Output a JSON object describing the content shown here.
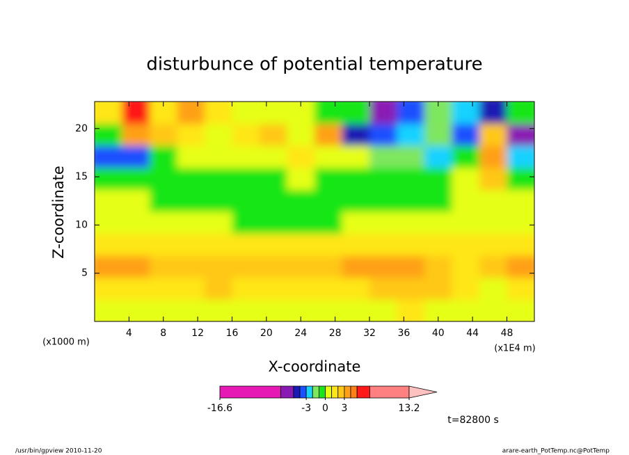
{
  "chart_data": {
    "type": "contour",
    "title": "disturbunce of potential temperature",
    "xlabel": "X-coordinate",
    "ylabel": "Z-coordinate",
    "y_unit": "(x1000 m)",
    "x_unit": "(x1E4 m)",
    "time_label": "t=82800 s",
    "footer_left": "/usr/bin/gpview  2010-11-20",
    "footer_right": "arare-earth_PotTemp.nc@PotTemp",
    "xlim": [
      0,
      51.2
    ],
    "ylim": [
      0,
      22.8
    ],
    "xticks": [
      4,
      8,
      12,
      16,
      20,
      24,
      28,
      32,
      36,
      40,
      44,
      48
    ],
    "yticks": [
      5,
      10,
      15,
      20
    ],
    "z": [
      [
        0.5,
        0.5,
        0.5,
        0.5,
        0.5,
        0.5,
        0.5,
        0.5,
        0.5,
        0.5,
        0.5,
        1.5,
        0.5,
        0.5,
        0.5,
        0.5
      ],
      [
        1.5,
        1.5,
        1.5,
        1.5,
        2,
        1.5,
        1.5,
        1.5,
        1.5,
        1.5,
        2,
        2.5,
        2,
        1.5,
        0.5,
        1.5
      ],
      [
        3.5,
        3.5,
        2.5,
        2.5,
        2.5,
        2.5,
        2.5,
        2.5,
        2.5,
        3.5,
        3.5,
        3.5,
        2.5,
        1.5,
        2.5,
        3.5
      ],
      [
        1.5,
        1.5,
        1.5,
        1.5,
        1.5,
        1.5,
        1.5,
        1.5,
        1.5,
        1.5,
        1.5,
        1.5,
        1.5,
        1.5,
        1.5,
        1.5
      ],
      [
        0.5,
        0.5,
        0.5,
        0.5,
        0.5,
        -0.5,
        -0.5,
        -0.5,
        -0.5,
        0.5,
        0.5,
        0.5,
        0.5,
        0.5,
        0.5,
        0.5
      ],
      [
        0.5,
        0.5,
        -0.5,
        -0.5,
        -0.5,
        -0.5,
        -0.5,
        -0.5,
        -0.5,
        -0.5,
        -0.5,
        -0.5,
        -0.5,
        0.5,
        0.5,
        0.5
      ],
      [
        -0.5,
        -0.5,
        -0.5,
        -0.5,
        -0.5,
        -0.5,
        -0.5,
        0.5,
        -0.5,
        -0.5,
        -0.5,
        -0.5,
        -0.5,
        0.5,
        2.5,
        -0.5
      ],
      [
        -3.5,
        -3.5,
        -0.5,
        0.5,
        0.5,
        0.5,
        0.5,
        1.5,
        0.5,
        0.5,
        -1.5,
        -1.5,
        -2.5,
        -0.5,
        3.5,
        -2.5
      ],
      [
        -0.5,
        3.5,
        2.5,
        1.5,
        0.5,
        1.5,
        2.5,
        0.5,
        3.5,
        -4.5,
        -3.5,
        -2.5,
        -1.5,
        -3.5,
        2.5,
        -5.5
      ],
      [
        1.5,
        5.5,
        1.5,
        3.5,
        1.5,
        0.5,
        0.5,
        0.5,
        -0.5,
        -0.5,
        -5.5,
        -3.5,
        -1.5,
        -2.5,
        -4.5,
        -0.5
      ]
    ],
    "levels": [
      -16.6,
      -7,
      -5,
      -4,
      -3,
      -2,
      -1,
      0,
      1,
      2,
      3,
      4,
      5,
      7,
      13.2
    ],
    "colors": [
      "#e619b4",
      "#8a1ab4",
      "#1a1ab4",
      "#1a50ff",
      "#19d2ff",
      "#7fe65f",
      "#19e619",
      "#e6ff19",
      "#ffe619",
      "#ffc819",
      "#ffa019",
      "#ff8019",
      "#ff1919",
      "#ff8080"
    ],
    "extend_color": "#ffc0c0",
    "colorbar_ticks": [
      -16.6,
      -3,
      0,
      3,
      13.2
    ]
  }
}
